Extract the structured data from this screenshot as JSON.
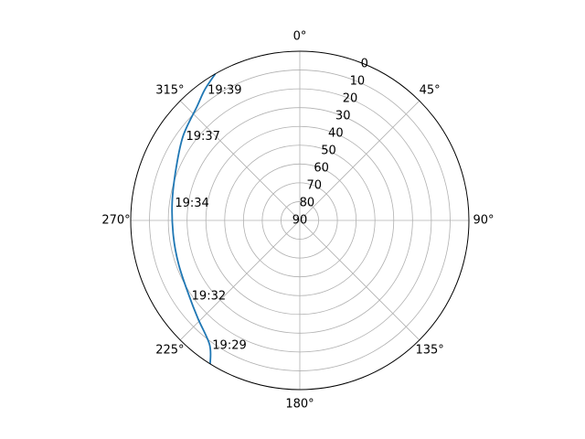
{
  "chart_data": {
    "type": "line",
    "projection": "polar",
    "theta_zero_location": "N",
    "theta_direction": "clockwise",
    "theta_tick_labels": [
      "0°",
      "45°",
      "90°",
      "135°",
      "180°",
      "225°",
      "270°",
      "315°"
    ],
    "radial_axis": {
      "range": [
        0,
        90
      ],
      "inverted": true,
      "ticks": [
        0,
        10,
        20,
        30,
        40,
        50,
        60,
        70,
        80,
        90
      ],
      "tick_labels": [
        "0",
        "10",
        "20",
        "30",
        "40",
        "50",
        "60",
        "70",
        "80",
        "90"
      ]
    },
    "grid": true,
    "series": [
      {
        "color": "#1f77b4",
        "points": [
          {
            "azimuth": 212,
            "elevation": 0
          },
          {
            "azimuth": 216,
            "elevation": 8.3,
            "label": "19:29"
          },
          {
            "azimuth": 226,
            "elevation": 14.7
          },
          {
            "azimuth": 236,
            "elevation": 18.8,
            "label": "19:32"
          },
          {
            "azimuth": 250,
            "elevation": 21.4
          },
          {
            "azimuth": 263,
            "elevation": 22.2
          },
          {
            "azimuth": 278,
            "elevation": 21.4,
            "label": "19:34"
          },
          {
            "azimuth": 293,
            "elevation": 18.5
          },
          {
            "azimuth": 306,
            "elevation": 13.3,
            "label": "19:37"
          },
          {
            "azimuth": 318,
            "elevation": 8.3
          },
          {
            "azimuth": 324,
            "elevation": 4.0,
            "label": "19:39"
          },
          {
            "azimuth": 330,
            "elevation": 0
          }
        ]
      }
    ]
  }
}
